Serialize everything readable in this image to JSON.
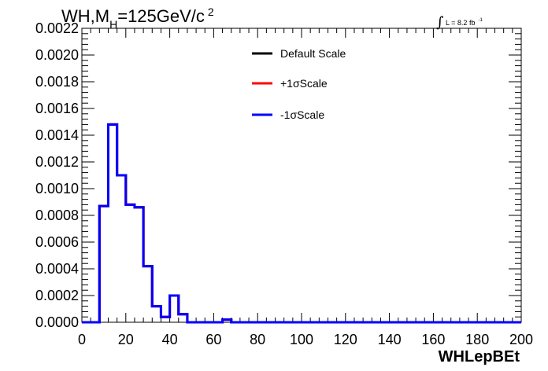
{
  "title": {
    "main": "WH,M",
    "sub": "H",
    "rest": "=125GeV/c",
    "sup": "2"
  },
  "lumi": {
    "symbol": "∫",
    "text": "L = 8.2 fb",
    "sup": "-1"
  },
  "chart_data": {
    "type": "line",
    "xlabel": "WHLepBEt",
    "ylabel": "",
    "xlim": [
      0,
      200
    ],
    "ylim": [
      0,
      0.0022
    ],
    "bin_width": 4,
    "x_ticks": [
      "0",
      "20",
      "40",
      "60",
      "80",
      "100",
      "120",
      "140",
      "160",
      "180",
      "200"
    ],
    "y_ticks": [
      "0.0000",
      "0.0002",
      "0.0004",
      "0.0006",
      "0.0008",
      "0.0010",
      "0.0012",
      "0.0014",
      "0.0016",
      "0.0018",
      "0.0020",
      "0.0022"
    ],
    "x_edges": [
      0,
      4,
      8,
      12,
      16,
      20,
      24,
      28,
      32,
      36,
      40,
      44,
      48,
      52,
      56,
      60,
      64,
      68,
      72,
      76,
      80,
      84,
      88,
      92,
      96,
      100,
      104,
      108,
      112,
      116,
      120,
      124,
      128,
      132,
      136,
      140,
      144,
      148,
      152,
      156,
      160,
      164,
      168,
      172,
      176,
      180,
      184,
      188,
      192,
      196,
      200
    ],
    "legend_position": "top-center",
    "grid": false,
    "series": [
      {
        "name": "Default Scale",
        "color": "#000000",
        "values": [
          0,
          0,
          0.00087,
          0.00148,
          0.0011,
          0.00088,
          0.00086,
          0.00042,
          0.00012,
          4e-05,
          0.0002,
          6e-05,
          0,
          0,
          0,
          0,
          2e-05,
          0,
          0,
          0,
          0,
          0,
          0,
          0,
          0,
          0,
          0,
          0,
          0,
          0,
          0,
          0,
          0,
          0,
          0,
          0,
          0,
          0,
          0,
          0,
          0,
          0,
          0,
          0,
          0,
          0,
          0,
          0,
          0,
          0
        ]
      },
      {
        "name": "+1σScale",
        "color": "#ff0000",
        "values": [
          0,
          0,
          0.00087,
          0.00148,
          0.0011,
          0.00088,
          0.00086,
          0.00042,
          0.00012,
          4e-05,
          0.0002,
          6e-05,
          0,
          0,
          0,
          0,
          2e-05,
          0,
          0,
          0,
          0,
          0,
          0,
          0,
          0,
          0,
          0,
          0,
          0,
          0,
          0,
          0,
          0,
          0,
          0,
          0,
          0,
          0,
          0,
          0,
          0,
          0,
          0,
          0,
          0,
          0,
          0,
          0,
          0,
          0
        ]
      },
      {
        "name": "-1σScale",
        "color": "#0000ff",
        "values": [
          0,
          0,
          0.00087,
          0.00148,
          0.0011,
          0.00088,
          0.00086,
          0.00042,
          0.00012,
          4e-05,
          0.0002,
          6e-05,
          0,
          0,
          0,
          0,
          2e-05,
          0,
          0,
          0,
          0,
          0,
          0,
          0,
          0,
          0,
          0,
          0,
          0,
          0,
          0,
          0,
          0,
          0,
          0,
          0,
          0,
          0,
          0,
          0,
          0,
          0,
          0,
          0,
          0,
          0,
          0,
          0,
          0,
          0
        ]
      }
    ]
  }
}
